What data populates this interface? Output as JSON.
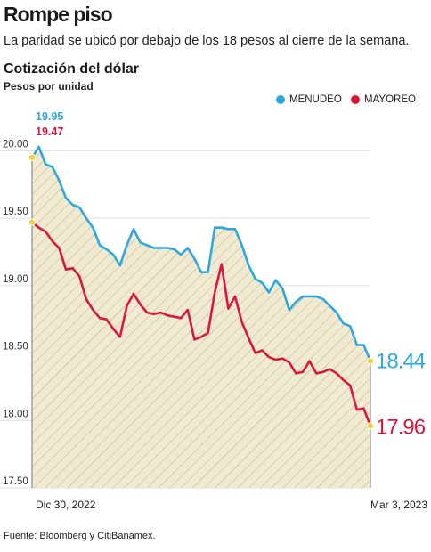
{
  "headline": "Rompe piso",
  "subheadline": "La paridad se ubicó por debajo de los 18 pesos al cierre de la semana.",
  "source": "Fuente: Bloomberg y CitiBanamex.",
  "colors": {
    "menudeo": "#2ea8de",
    "mayoreo": "#d8183e",
    "fill": "#f1ead2",
    "hatch": "#c9bb86",
    "grid": "#dddddd"
  },
  "chart_data": {
    "type": "line",
    "title": "Cotización del dólar",
    "ylabel": "Pesos por unidad",
    "ylim": [
      17.5,
      20.3
    ],
    "yticks": [
      "20.00",
      "19.50",
      "19.00",
      "18.50",
      "18.00",
      "17.50"
    ],
    "x_start_label": "Dic 30, 2022",
    "x_end_label": "Mar 3, 2023",
    "grid": "horizontal",
    "legend_position": "top-right",
    "series": [
      {
        "name": "MENUDEO",
        "start_label": "19.95",
        "end_label": "18.44",
        "values": [
          19.95,
          20.03,
          19.9,
          19.88,
          19.78,
          19.65,
          19.6,
          19.58,
          19.5,
          19.43,
          19.3,
          19.27,
          19.23,
          19.15,
          19.3,
          19.42,
          19.32,
          19.3,
          19.28,
          19.28,
          19.28,
          19.27,
          19.23,
          19.28,
          19.2,
          19.1,
          19.1,
          19.43,
          19.43,
          19.42,
          19.42,
          19.3,
          19.15,
          19.05,
          19.02,
          18.95,
          19.04,
          18.98,
          18.82,
          18.88,
          18.92,
          18.92,
          18.92,
          18.9,
          18.85,
          18.8,
          18.72,
          18.7,
          18.56,
          18.56,
          18.44
        ]
      },
      {
        "name": "MAYOREO",
        "start_label": "19.47",
        "end_label": "17.96",
        "values": [
          19.47,
          19.43,
          19.4,
          19.33,
          19.28,
          19.12,
          19.13,
          19.07,
          18.9,
          18.82,
          18.76,
          18.75,
          18.68,
          18.62,
          18.85,
          18.94,
          18.86,
          18.8,
          18.79,
          18.8,
          18.78,
          18.77,
          18.76,
          18.82,
          18.6,
          18.62,
          18.65,
          18.95,
          19.16,
          18.83,
          18.92,
          18.73,
          18.61,
          18.5,
          18.52,
          18.47,
          18.45,
          18.46,
          18.43,
          18.35,
          18.36,
          18.44,
          18.35,
          18.36,
          18.38,
          18.35,
          18.3,
          18.26,
          18.08,
          18.09,
          17.96
        ]
      }
    ]
  }
}
